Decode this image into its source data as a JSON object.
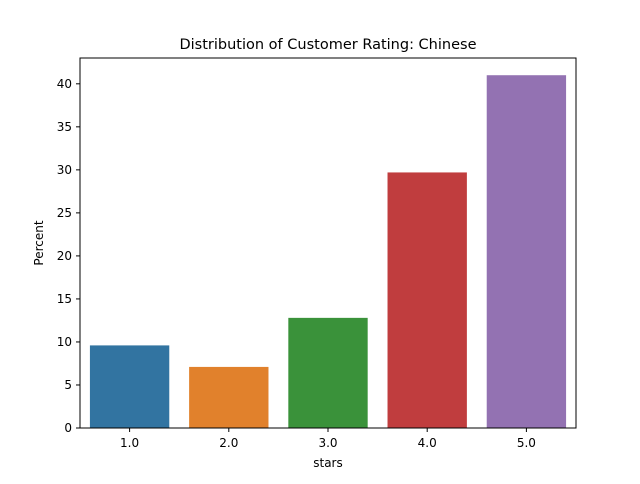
{
  "chart_data": {
    "type": "bar",
    "title": "Distribution of Customer Rating: Chinese",
    "xlabel": "stars",
    "ylabel": "Percent",
    "categories": [
      "1.0",
      "2.0",
      "3.0",
      "4.0",
      "5.0"
    ],
    "values": [
      9.6,
      7.1,
      12.8,
      29.7,
      41.0
    ],
    "colors": [
      "#3274a1",
      "#e1812c",
      "#3a923a",
      "#c03d3e",
      "#9372b2"
    ],
    "ylim": [
      0,
      43
    ],
    "yticks": [
      0,
      5,
      10,
      15,
      20,
      25,
      30,
      35,
      40
    ],
    "grid": false
  }
}
